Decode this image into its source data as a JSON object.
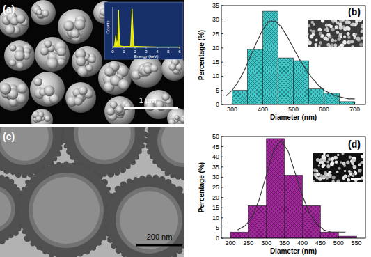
{
  "panel_labels": [
    "(a)",
    "(b)",
    "(c)",
    "(d)"
  ],
  "images": {
    "a": {
      "scale_bar": "1 μm"
    },
    "c": {
      "scale_bar": "200 nm"
    }
  },
  "chart_data": [
    {
      "type": "line",
      "x_label": "Energy (keV)",
      "y_label": "Counts",
      "x": [
        0,
        0.15,
        0.27,
        0.35,
        0.45,
        0.52,
        0.62,
        1.0,
        1.6,
        1.74,
        1.88,
        2.5,
        4,
        6
      ],
      "values": [
        1,
        3,
        30,
        6,
        18,
        92,
        4,
        2,
        3,
        95,
        3,
        2,
        1,
        1
      ],
      "color": "#ffff00",
      "xlim": [
        0,
        6
      ],
      "xticks": [
        0,
        1,
        2,
        3,
        4,
        5,
        6
      ],
      "ylim": [
        0,
        100
      ],
      "tick_labels": "x"
    },
    {
      "type": "histogram",
      "x_label": "Diameter (nm)",
      "y_label": "Percentage (%)",
      "bins": [
        300,
        350,
        400,
        450,
        500,
        550,
        600,
        650,
        700
      ],
      "values": [
        5,
        19.5,
        33,
        16.5,
        15.5,
        5.5,
        4,
        1
      ],
      "color": "#40c8c8",
      "xlim": [
        265,
        735
      ],
      "xticks": [
        300,
        400,
        500,
        600,
        700
      ],
      "ylim": [
        0,
        35
      ],
      "yticks": [
        0,
        5,
        10,
        15,
        20,
        25,
        30,
        35
      ],
      "series": [
        {
          "type": "line",
          "color": "#333333",
          "x": [
            280,
            300,
            320,
            340,
            360,
            380,
            400,
            420,
            440,
            460,
            480,
            500,
            520,
            540,
            560,
            580,
            600,
            620,
            640,
            660,
            680,
            700
          ],
          "values": [
            3,
            5,
            8,
            12,
            17,
            22,
            26.5,
            29.5,
            29.5,
            27.5,
            24,
            20,
            16,
            12.5,
            9.5,
            7,
            5,
            4,
            3,
            2.5,
            2,
            2
          ]
        }
      ]
    },
    {
      "type": "histogram",
      "x_label": "Diameter (nm)",
      "y_label": "Percentage (%)",
      "bins": [
        200,
        250,
        300,
        350,
        400,
        450,
        500,
        550
      ],
      "values": [
        3,
        16,
        49,
        31,
        16,
        3,
        1
      ],
      "color": "#a0289b",
      "xlim": [
        175,
        575
      ],
      "xticks": [
        200,
        250,
        300,
        350,
        400,
        450,
        500,
        550
      ],
      "ylim": [
        0,
        50
      ],
      "yticks": [
        0,
        5,
        10,
        15,
        20,
        25,
        30,
        35,
        40,
        45,
        50
      ],
      "series": [
        {
          "type": "line",
          "color": "#333333",
          "x": [
            220,
            240,
            260,
            280,
            300,
            320,
            340,
            360,
            380,
            400,
            420,
            440,
            460,
            480,
            500,
            520
          ],
          "values": [
            4,
            6,
            10,
            19,
            31,
            43,
            48,
            43,
            32,
            21,
            12,
            7,
            4,
            3,
            3,
            3
          ]
        }
      ]
    }
  ]
}
